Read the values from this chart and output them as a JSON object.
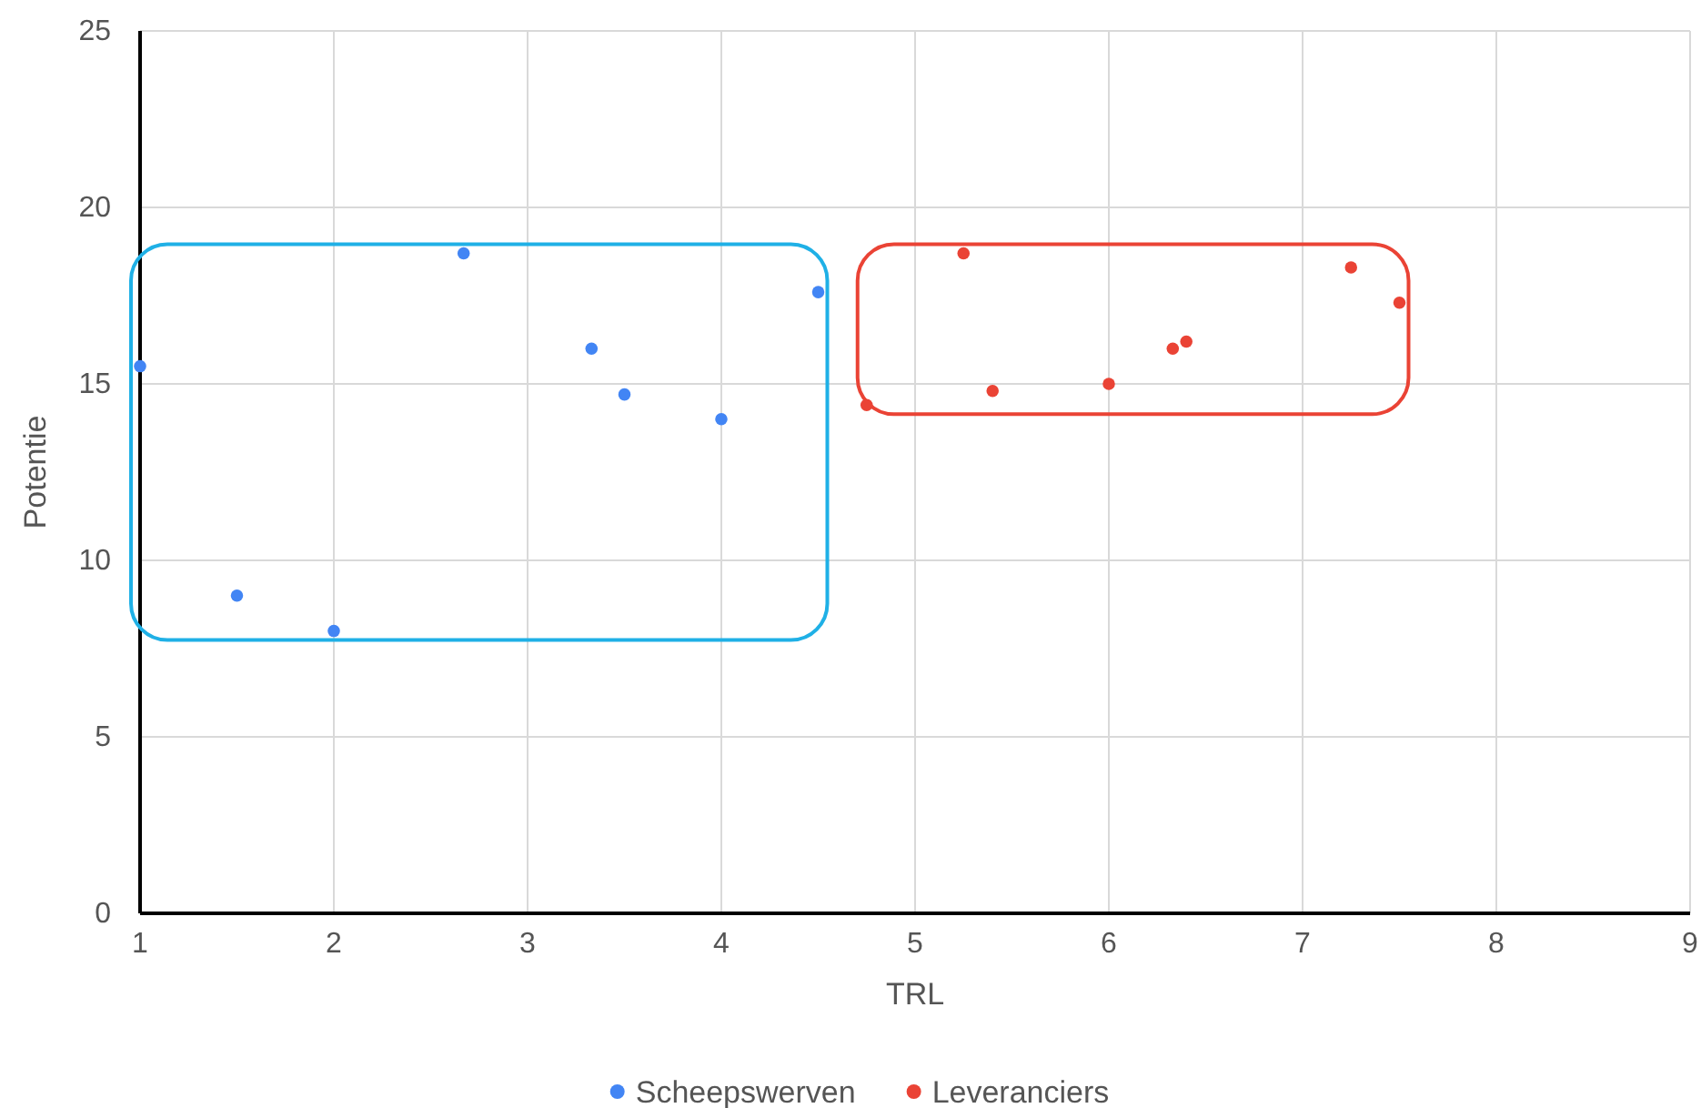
{
  "chart_data": {
    "type": "scatter",
    "xlabel": "TRL",
    "ylabel": "Potentie",
    "xlim": [
      1,
      9
    ],
    "xticks": [
      1,
      2,
      3,
      4,
      5,
      6,
      7,
      8,
      9
    ],
    "ylim": [
      0,
      25
    ],
    "yticks": [
      0,
      5,
      10,
      15,
      20,
      25
    ],
    "grid": true,
    "legend": "bottom",
    "marker": "circle",
    "series": [
      {
        "name": "Scheepswerven",
        "color": "#4285f4",
        "x": [
          1,
          1.5,
          2,
          2.67,
          3.33,
          3.5,
          4,
          4.5
        ],
        "values": [
          15.5,
          9,
          8,
          18.7,
          16,
          14.7,
          14,
          17.6
        ]
      },
      {
        "name": "Leveranciers",
        "color": "#ea4335",
        "x": [
          4.75,
          5.25,
          5.4,
          6,
          6.33,
          6.4,
          7.25,
          7.5
        ],
        "values": [
          14.4,
          18.7,
          14.8,
          15,
          16,
          16.2,
          18.3,
          17.3
        ]
      }
    ]
  }
}
